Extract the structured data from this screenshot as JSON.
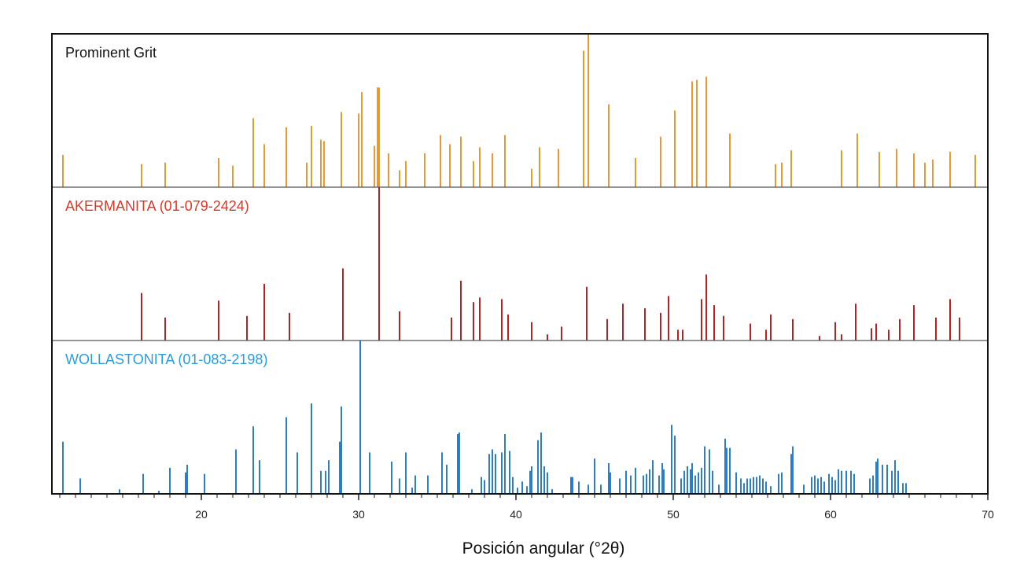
{
  "chart_data": {
    "type": "stick",
    "xlabel": "Posición angular (°2θ)",
    "xlim": [
      10.5,
      70
    ],
    "xticks": [
      20,
      30,
      40,
      50,
      60,
      70
    ],
    "xtick_labels": [
      "20",
      "30",
      "40",
      "50",
      "60",
      "70"
    ],
    "series": [
      {
        "name": "Prominent Grit",
        "color": "#E69A35",
        "label_color": "#111111",
        "peaks": [
          [
            11.2,
            21
          ],
          [
            16.2,
            15
          ],
          [
            17.7,
            16
          ],
          [
            21.1,
            19
          ],
          [
            22.0,
            14
          ],
          [
            23.3,
            45
          ],
          [
            24.0,
            28
          ],
          [
            25.4,
            39
          ],
          [
            26.7,
            16
          ],
          [
            27.0,
            40
          ],
          [
            27.6,
            31
          ],
          [
            27.8,
            30
          ],
          [
            28.9,
            49
          ],
          [
            30.0,
            48
          ],
          [
            30.2,
            62
          ],
          [
            31.0,
            27
          ],
          [
            31.2,
            65
          ],
          [
            31.3,
            65
          ],
          [
            31.9,
            22
          ],
          [
            32.6,
            11
          ],
          [
            33.0,
            17
          ],
          [
            34.2,
            22
          ],
          [
            35.2,
            34
          ],
          [
            35.8,
            28
          ],
          [
            36.5,
            33
          ],
          [
            37.3,
            17
          ],
          [
            37.7,
            26
          ],
          [
            38.5,
            22
          ],
          [
            39.3,
            34
          ],
          [
            41.0,
            12
          ],
          [
            41.5,
            26
          ],
          [
            42.7,
            25
          ],
          [
            44.3,
            89
          ],
          [
            44.6,
            100
          ],
          [
            45.9,
            54
          ],
          [
            47.6,
            19
          ],
          [
            49.2,
            33
          ],
          [
            50.1,
            50
          ],
          [
            51.2,
            69
          ],
          [
            51.5,
            70
          ],
          [
            52.1,
            72
          ],
          [
            53.6,
            35
          ],
          [
            56.5,
            15
          ],
          [
            56.9,
            16
          ],
          [
            57.5,
            24
          ],
          [
            60.7,
            24
          ],
          [
            61.7,
            35
          ],
          [
            63.1,
            23
          ],
          [
            64.2,
            25
          ],
          [
            65.3,
            22
          ],
          [
            66.0,
            16
          ],
          [
            66.5,
            18
          ],
          [
            67.6,
            23
          ],
          [
            69.2,
            21
          ]
        ]
      },
      {
        "name": "AKERMANITA (01-079-2424)",
        "color": "#B22222",
        "label_color": "#D23A2B",
        "peaks": [
          [
            16.2,
            31
          ],
          [
            17.7,
            15
          ],
          [
            21.1,
            26
          ],
          [
            22.9,
            16
          ],
          [
            24.0,
            37
          ],
          [
            25.6,
            18
          ],
          [
            29.0,
            47
          ],
          [
            31.3,
            100
          ],
          [
            32.6,
            19
          ],
          [
            35.9,
            15
          ],
          [
            36.5,
            39
          ],
          [
            37.3,
            25
          ],
          [
            37.7,
            28
          ],
          [
            39.1,
            27
          ],
          [
            39.5,
            17
          ],
          [
            41.0,
            12
          ],
          [
            42.0,
            4
          ],
          [
            42.9,
            9
          ],
          [
            44.5,
            35
          ],
          [
            45.8,
            14
          ],
          [
            46.8,
            24
          ],
          [
            48.2,
            21
          ],
          [
            49.2,
            18
          ],
          [
            49.7,
            29
          ],
          [
            50.3,
            7
          ],
          [
            50.6,
            7
          ],
          [
            51.8,
            27
          ],
          [
            52.1,
            43
          ],
          [
            52.6,
            23
          ],
          [
            53.2,
            16
          ],
          [
            54.9,
            11
          ],
          [
            55.9,
            7
          ],
          [
            56.2,
            17
          ],
          [
            57.6,
            14
          ],
          [
            59.3,
            3
          ],
          [
            60.3,
            12
          ],
          [
            60.7,
            4
          ],
          [
            61.6,
            24
          ],
          [
            62.6,
            8
          ],
          [
            62.9,
            11
          ],
          [
            63.7,
            7
          ],
          [
            64.4,
            14
          ],
          [
            65.3,
            23
          ],
          [
            66.7,
            15
          ],
          [
            67.6,
            27
          ],
          [
            68.2,
            15
          ]
        ]
      },
      {
        "name": "WOLLASTONITA (01-083-2198)",
        "color": "#2E7DC4",
        "label_color": "#2E9BD6",
        "peaks": [
          [
            11.2,
            34
          ],
          [
            12.3,
            10
          ],
          [
            14.8,
            3
          ],
          [
            16.3,
            13
          ],
          [
            17.3,
            2
          ],
          [
            18.0,
            17
          ],
          [
            19.0,
            14
          ],
          [
            19.1,
            19
          ],
          [
            20.2,
            13
          ],
          [
            22.2,
            29
          ],
          [
            23.3,
            44
          ],
          [
            23.7,
            22
          ],
          [
            25.4,
            50
          ],
          [
            26.1,
            27
          ],
          [
            27.0,
            59
          ],
          [
            27.6,
            15
          ],
          [
            27.9,
            15
          ],
          [
            28.1,
            22
          ],
          [
            28.8,
            34
          ],
          [
            28.9,
            57
          ],
          [
            30.1,
            100
          ],
          [
            30.7,
            27
          ],
          [
            32.1,
            21
          ],
          [
            32.6,
            10
          ],
          [
            33.0,
            27
          ],
          [
            33.4,
            4
          ],
          [
            33.6,
            12
          ],
          [
            34.4,
            12
          ],
          [
            35.3,
            27
          ],
          [
            35.6,
            19
          ],
          [
            36.3,
            39
          ],
          [
            36.4,
            40
          ],
          [
            37.2,
            3
          ],
          [
            37.8,
            11
          ],
          [
            38.0,
            9
          ],
          [
            38.3,
            26
          ],
          [
            38.5,
            29
          ],
          [
            38.7,
            26
          ],
          [
            39.1,
            27
          ],
          [
            39.3,
            39
          ],
          [
            39.6,
            28
          ],
          [
            39.8,
            11
          ],
          [
            40.1,
            4
          ],
          [
            40.4,
            8
          ],
          [
            40.7,
            5
          ],
          [
            40.9,
            15
          ],
          [
            41.0,
            18
          ],
          [
            41.4,
            35
          ],
          [
            41.6,
            40
          ],
          [
            41.8,
            18
          ],
          [
            42.0,
            14
          ],
          [
            42.3,
            3
          ],
          [
            43.5,
            11
          ],
          [
            43.6,
            11
          ],
          [
            44.0,
            8
          ],
          [
            44.6,
            6
          ],
          [
            45.0,
            23
          ],
          [
            45.4,
            6
          ],
          [
            45.9,
            20
          ],
          [
            46.0,
            14
          ],
          [
            46.6,
            10
          ],
          [
            47.0,
            15
          ],
          [
            47.3,
            12
          ],
          [
            47.6,
            17
          ],
          [
            48.1,
            12
          ],
          [
            48.3,
            13
          ],
          [
            48.5,
            16
          ],
          [
            48.7,
            22
          ],
          [
            49.1,
            12
          ],
          [
            49.3,
            20
          ],
          [
            49.4,
            16
          ],
          [
            49.9,
            45
          ],
          [
            50.1,
            38
          ],
          [
            50.5,
            10
          ],
          [
            50.7,
            15
          ],
          [
            50.9,
            18
          ],
          [
            51.1,
            16
          ],
          [
            51.2,
            20
          ],
          [
            51.4,
            12
          ],
          [
            51.6,
            14
          ],
          [
            51.8,
            17
          ],
          [
            52.0,
            31
          ],
          [
            52.3,
            29
          ],
          [
            52.5,
            15
          ],
          [
            52.9,
            6
          ],
          [
            53.3,
            36
          ],
          [
            53.4,
            30
          ],
          [
            53.6,
            30
          ],
          [
            54.0,
            14
          ],
          [
            54.3,
            10
          ],
          [
            54.5,
            7
          ],
          [
            54.7,
            10
          ],
          [
            54.9,
            10
          ],
          [
            55.1,
            11
          ],
          [
            55.3,
            11
          ],
          [
            55.5,
            12
          ],
          [
            55.7,
            10
          ],
          [
            55.9,
            8
          ],
          [
            56.2,
            5
          ],
          [
            56.7,
            13
          ],
          [
            56.9,
            14
          ],
          [
            57.5,
            26
          ],
          [
            57.6,
            31
          ],
          [
            58.3,
            6
          ],
          [
            58.8,
            11
          ],
          [
            59.0,
            12
          ],
          [
            59.2,
            10
          ],
          [
            59.4,
            11
          ],
          [
            59.6,
            8
          ],
          [
            59.9,
            13
          ],
          [
            60.1,
            11
          ],
          [
            60.3,
            9
          ],
          [
            60.5,
            16
          ],
          [
            60.7,
            15
          ],
          [
            61.0,
            15
          ],
          [
            61.3,
            15
          ],
          [
            61.5,
            13
          ],
          [
            62.5,
            10
          ],
          [
            62.7,
            12
          ],
          [
            62.9,
            21
          ],
          [
            63.0,
            23
          ],
          [
            63.3,
            19
          ],
          [
            63.6,
            19
          ],
          [
            63.9,
            15
          ],
          [
            64.1,
            22
          ],
          [
            64.3,
            15
          ],
          [
            64.6,
            7
          ],
          [
            64.8,
            7
          ]
        ]
      }
    ]
  }
}
